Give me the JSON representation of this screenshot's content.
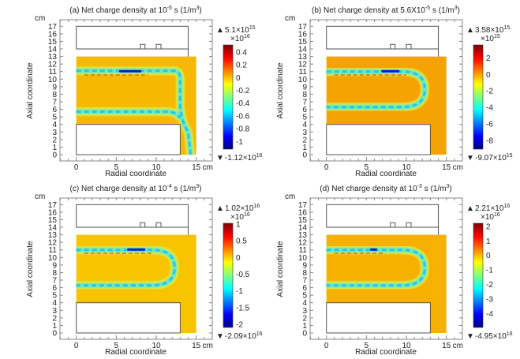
{
  "chart_data": [
    {
      "type": "heatmap",
      "panel": "a",
      "title": {
        "pre": "(a) Net charge density at 10",
        "sup": "-5",
        "mid": " s (1/m",
        "sup2": "3",
        "post": ")"
      },
      "xlabel": "Radial coordinate",
      "ylabel": "Axial coordinate",
      "unit": "cm",
      "xticks": [
        0,
        5,
        10,
        15
      ],
      "yticks": [
        0,
        1,
        2,
        3,
        4,
        5,
        6,
        7,
        8,
        9,
        10,
        11,
        12,
        13,
        14,
        15,
        16,
        17
      ],
      "xlim": [
        0,
        15
      ],
      "ylim": [
        0,
        17
      ],
      "field_background": "#f6b800",
      "colorbar": {
        "colormap": "jet",
        "multiplier": "×10",
        "multiplier_exp": "16",
        "range": [
          -1.12,
          0.51
        ],
        "ticks": [
          0.4,
          0.2,
          0,
          -0.2,
          -0.4,
          -0.6,
          -0.8,
          -1
        ],
        "max_label": "5.1×10",
        "max_exp": "15",
        "min_label": "-1.12×10",
        "min_exp": "16"
      }
    },
    {
      "type": "heatmap",
      "panel": "b",
      "title": {
        "pre": "(b) Net charge density at 5.6X10",
        "sup": "-5",
        "mid": " s (1/m",
        "sup2": "3",
        "post": ")"
      },
      "xlabel": "Radial coordinate",
      "ylabel": "Axial coordinate",
      "unit": "cm",
      "xticks": [
        0,
        5,
        10,
        15
      ],
      "yticks": [
        0,
        1,
        2,
        3,
        4,
        5,
        6,
        7,
        8,
        9,
        10,
        11,
        12,
        13,
        14,
        15,
        16,
        17
      ],
      "xlim": [
        0,
        15
      ],
      "ylim": [
        0,
        17
      ],
      "field_background": "#f5a300",
      "colorbar": {
        "colormap": "jet",
        "multiplier": "×10",
        "multiplier_exp": "15",
        "range": [
          -9.07,
          3.58
        ],
        "ticks": [
          2,
          0,
          -2,
          -4,
          -6,
          -8
        ],
        "max_label": "3.58×10",
        "max_exp": "15",
        "min_label": "-9.07×10",
        "min_exp": "15"
      }
    },
    {
      "type": "heatmap",
      "panel": "c",
      "title": {
        "pre": "(c) Net charge density at 10",
        "sup": "-4",
        "mid": " s (1/m",
        "sup2": "3",
        "post": ")"
      },
      "xlabel": "Radial coordinate",
      "ylabel": "Axial coordinate",
      "unit": "cm",
      "xticks": [
        0,
        5,
        10,
        15
      ],
      "yticks": [
        0,
        1,
        2,
        3,
        4,
        5,
        6,
        7,
        8,
        9,
        10,
        11,
        12,
        13,
        14,
        15,
        16,
        17
      ],
      "xlim": [
        0,
        15
      ],
      "ylim": [
        0,
        17
      ],
      "field_background": "#f8c400",
      "colorbar": {
        "colormap": "jet",
        "multiplier": "×10",
        "multiplier_exp": "16",
        "range": [
          -2.09,
          1.02
        ],
        "ticks": [
          1,
          0.5,
          0,
          -0.5,
          -1,
          -1.5,
          -2
        ],
        "max_label": "1.02×10",
        "max_exp": "16",
        "min_label": "-2.09×10",
        "min_exp": "16"
      }
    },
    {
      "type": "heatmap",
      "panel": "d",
      "title": {
        "pre": "(d) Net charge density at 10",
        "sup": "-3",
        "mid": " s (1/m",
        "sup2": "3",
        "post": ")"
      },
      "xlabel": "Radial coordinate",
      "ylabel": "Axial coordinate",
      "unit": "cm",
      "xticks": [
        0,
        5,
        10,
        15
      ],
      "yticks": [
        0,
        1,
        2,
        3,
        4,
        5,
        6,
        7,
        8,
        9,
        10,
        11,
        12,
        13,
        14,
        15,
        16,
        17
      ],
      "xlim": [
        0,
        15
      ],
      "ylim": [
        0,
        17
      ],
      "field_background": "#f6b000",
      "colorbar": {
        "colormap": "jet",
        "multiplier": "×10",
        "multiplier_exp": "16",
        "range": [
          -4.95,
          2.21
        ],
        "ticks": [
          2,
          1,
          0,
          -1,
          -2,
          -3,
          -4
        ],
        "max_label": "2.21×10",
        "max_exp": "16",
        "min_label": "-4.95×10",
        "min_exp": "16"
      }
    }
  ]
}
